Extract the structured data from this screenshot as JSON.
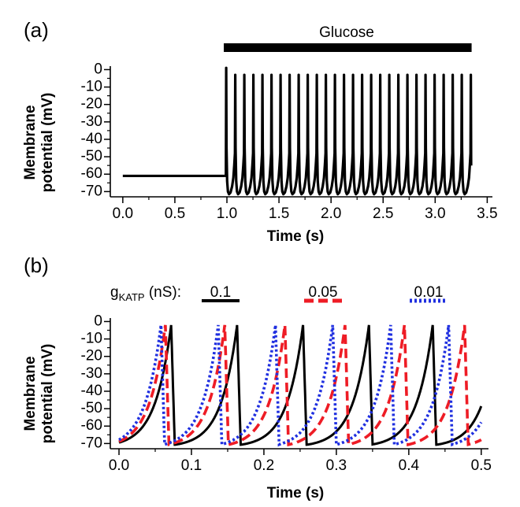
{
  "chart_data": [
    {
      "panel": "(a)",
      "type": "line",
      "ylabel_line1": "Membrane",
      "ylabel_line2": "potential (mV)",
      "xlabel": "Time (s)",
      "xlim": [
        -0.12,
        3.55
      ],
      "ylim": [
        -73,
        2
      ],
      "x_ticks": [
        0.0,
        0.5,
        1.0,
        1.5,
        2.0,
        2.5,
        3.0,
        3.5
      ],
      "x_tick_labels": [
        "0.0",
        "0.5",
        "1.0",
        "1.5",
        "2.0",
        "2.5",
        "3.0",
        "3.5"
      ],
      "y_ticks": [
        0,
        -10,
        -20,
        -30,
        -40,
        -50,
        -60,
        -70
      ],
      "y_tick_labels": [
        "0",
        "-10",
        "-20",
        "-30",
        "-40",
        "-50",
        "-60",
        "-70"
      ],
      "annotation": {
        "text": "Glucose",
        "x_start": 0.97,
        "x_end": 3.35
      },
      "series": [
        {
          "color": "#000000",
          "resting_potential": -61,
          "rest_until": 0.98,
          "burst_start": 0.99,
          "burst_end": 3.34,
          "spike_peak": -3,
          "first_spike_peak": 1,
          "trough": -71.5,
          "spike_count": 27,
          "end_value": -55
        }
      ]
    },
    {
      "panel": "(b)",
      "type": "line",
      "ylabel_line1": "Membrane",
      "ylabel_line2": "potential (mV)",
      "xlabel": "Time (s)",
      "xlim": [
        -0.012,
        0.51
      ],
      "ylim": [
        -73,
        2
      ],
      "x_ticks": [
        0.0,
        0.1,
        0.2,
        0.3,
        0.4,
        0.5
      ],
      "x_tick_labels": [
        "0.0",
        "0.1",
        "0.2",
        "0.3",
        "0.4",
        "0.5"
      ],
      "y_ticks": [
        0,
        -10,
        -20,
        -30,
        -40,
        -50,
        -60,
        -70
      ],
      "y_tick_labels": [
        "0",
        "-10",
        "-20",
        "-30",
        "-40",
        "-50",
        "-60",
        "-70"
      ],
      "legend_title": "g",
      "legend_title_sub": "KATP",
      "legend_title_unit": " (nS):",
      "series": [
        {
          "name": "0.1",
          "color": "#000000",
          "dash": "solid",
          "spike_times": [
            0.072,
            0.163,
            0.254,
            0.345,
            0.433
          ],
          "start_value": -71,
          "peak": -2,
          "trough": -71,
          "end_value": -49
        },
        {
          "name": "0.05",
          "color": "#ee1c25",
          "dash": "dashed",
          "spike_times": [
            0.064,
            0.146,
            0.229,
            0.312,
            0.394,
            0.477
          ],
          "start_value": -71,
          "peak": -2,
          "trough": -71,
          "end_value": -71
        },
        {
          "name": "0.01",
          "color": "#1f2fe0",
          "dash": "dotted",
          "spike_times": [
            0.058,
            0.137,
            0.216,
            0.295,
            0.375,
            0.455
          ],
          "start_value": -71,
          "peak": -2,
          "trough": -71,
          "end_value": -61
        }
      ]
    }
  ]
}
